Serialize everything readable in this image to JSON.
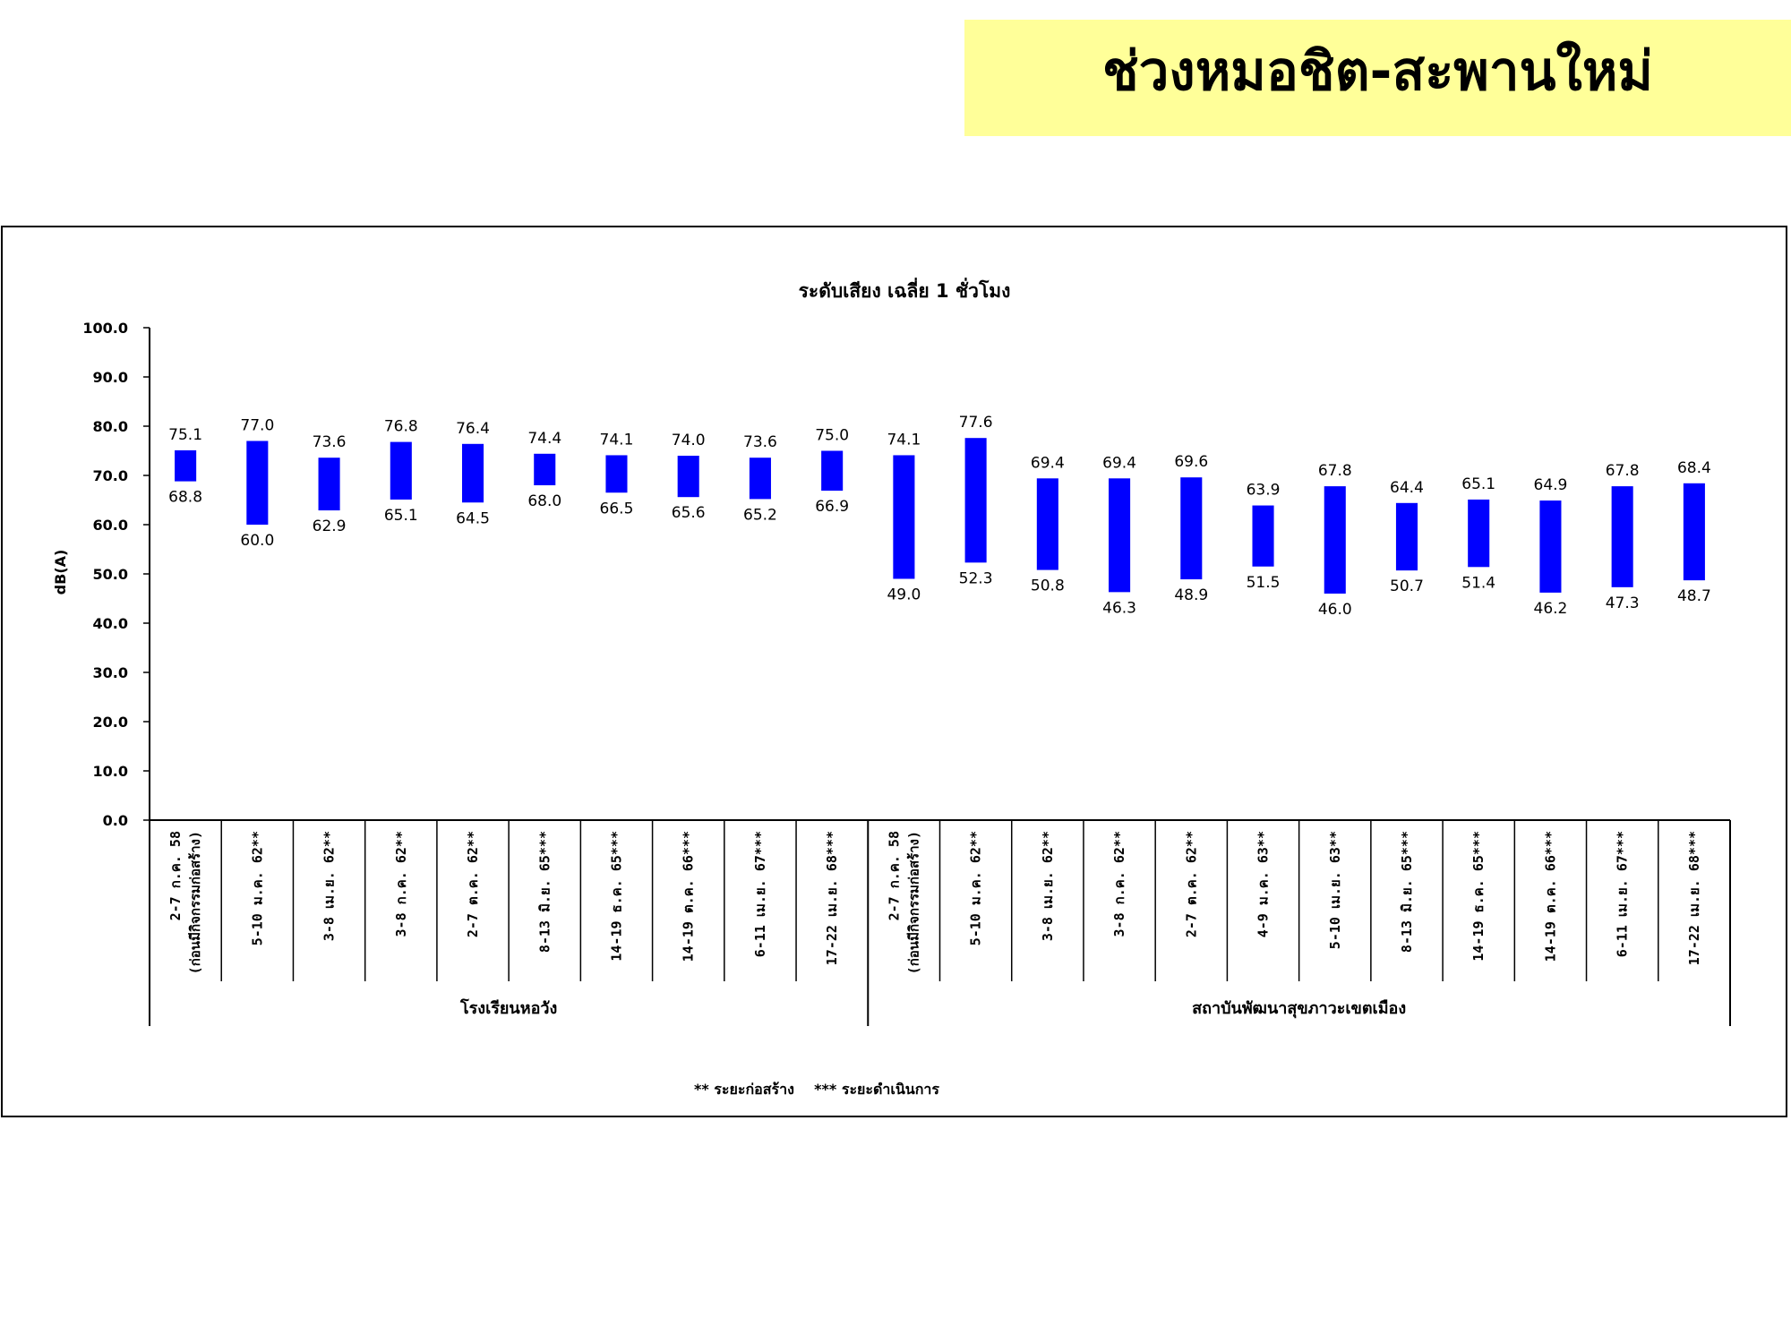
{
  "page": {
    "title": "ช่วงหมอชิต-สะพานใหม่"
  },
  "chart_data": {
    "type": "bar",
    "subtype": "floating-range",
    "title": "ระดับเสียง เฉลี่ย 1 ชั่วโมง",
    "ylabel": "dB(A)",
    "ylim": [
      0,
      100
    ],
    "yticks": [
      "0.0",
      "10.0",
      "20.0",
      "30.0",
      "40.0",
      "50.0",
      "60.0",
      "70.0",
      "80.0",
      "90.0",
      "100.0"
    ],
    "footnote": "** ระยะก่อสร้าง    *** ระยะดำเนินการ",
    "bar_color": "#0000ff",
    "groups": [
      {
        "name": "โรงเรียนหอวัง",
        "categories": [
          [
            "2-7 ก.ค. 58",
            "(ก่อนมีกิจกรรมก่อสร้าง)"
          ],
          [
            "5-10 ม.ค. 62**"
          ],
          [
            "3-8 เม.ย. 62**"
          ],
          [
            "3-8 ก.ค. 62**"
          ],
          [
            "2-7 ต.ค. 62**"
          ],
          [
            "8-13 มิ.ย. 65***"
          ],
          [
            "14-19 ธ.ค. 65***"
          ],
          [
            "14-19 ต.ค. 66***"
          ],
          [
            "6-11 เม.ย. 67***"
          ],
          [
            "17-22 เม.ย. 68***"
          ]
        ],
        "max": [
          "75.1",
          "77.0",
          "73.6",
          "76.8",
          "76.4",
          "74.4",
          "74.1",
          "74.0",
          "73.6",
          "75.0"
        ],
        "min": [
          "68.8",
          "60.0",
          "62.9",
          "65.1",
          "64.5",
          "68.0",
          "66.5",
          "65.6",
          "65.2",
          "66.9"
        ]
      },
      {
        "name": "สถาบันพัฒนาสุขภาวะเขตเมือง",
        "categories": [
          [
            "2-7 ก.ค. 58",
            "(ก่อนมีกิจกรรมก่อสร้าง)"
          ],
          [
            "5-10 ม.ค. 62**"
          ],
          [
            "3-8 เม.ย. 62**"
          ],
          [
            "3-8 ก.ค. 62**"
          ],
          [
            "2-7 ต.ค. 62**"
          ],
          [
            "4-9 ม.ค. 63**"
          ],
          [
            "5-10 เม.ย. 63**"
          ],
          [
            "8-13 มิ.ย. 65***"
          ],
          [
            "14-19 ธ.ค. 65***"
          ],
          [
            "14-19 ต.ค. 66***"
          ],
          [
            "6-11 เม.ย. 67***"
          ],
          [
            "17-22 เม.ย. 68***"
          ]
        ],
        "max": [
          "74.1",
          "77.6",
          "69.4",
          "69.4",
          "69.6",
          "63.9",
          "67.8",
          "64.4",
          "65.1",
          "64.9",
          "67.8",
          "68.4"
        ],
        "min": [
          "49.0",
          "52.3",
          "50.8",
          "46.3",
          "48.9",
          "51.5",
          "46.0",
          "50.7",
          "51.4",
          "46.2",
          "47.3",
          "48.7"
        ]
      }
    ]
  }
}
